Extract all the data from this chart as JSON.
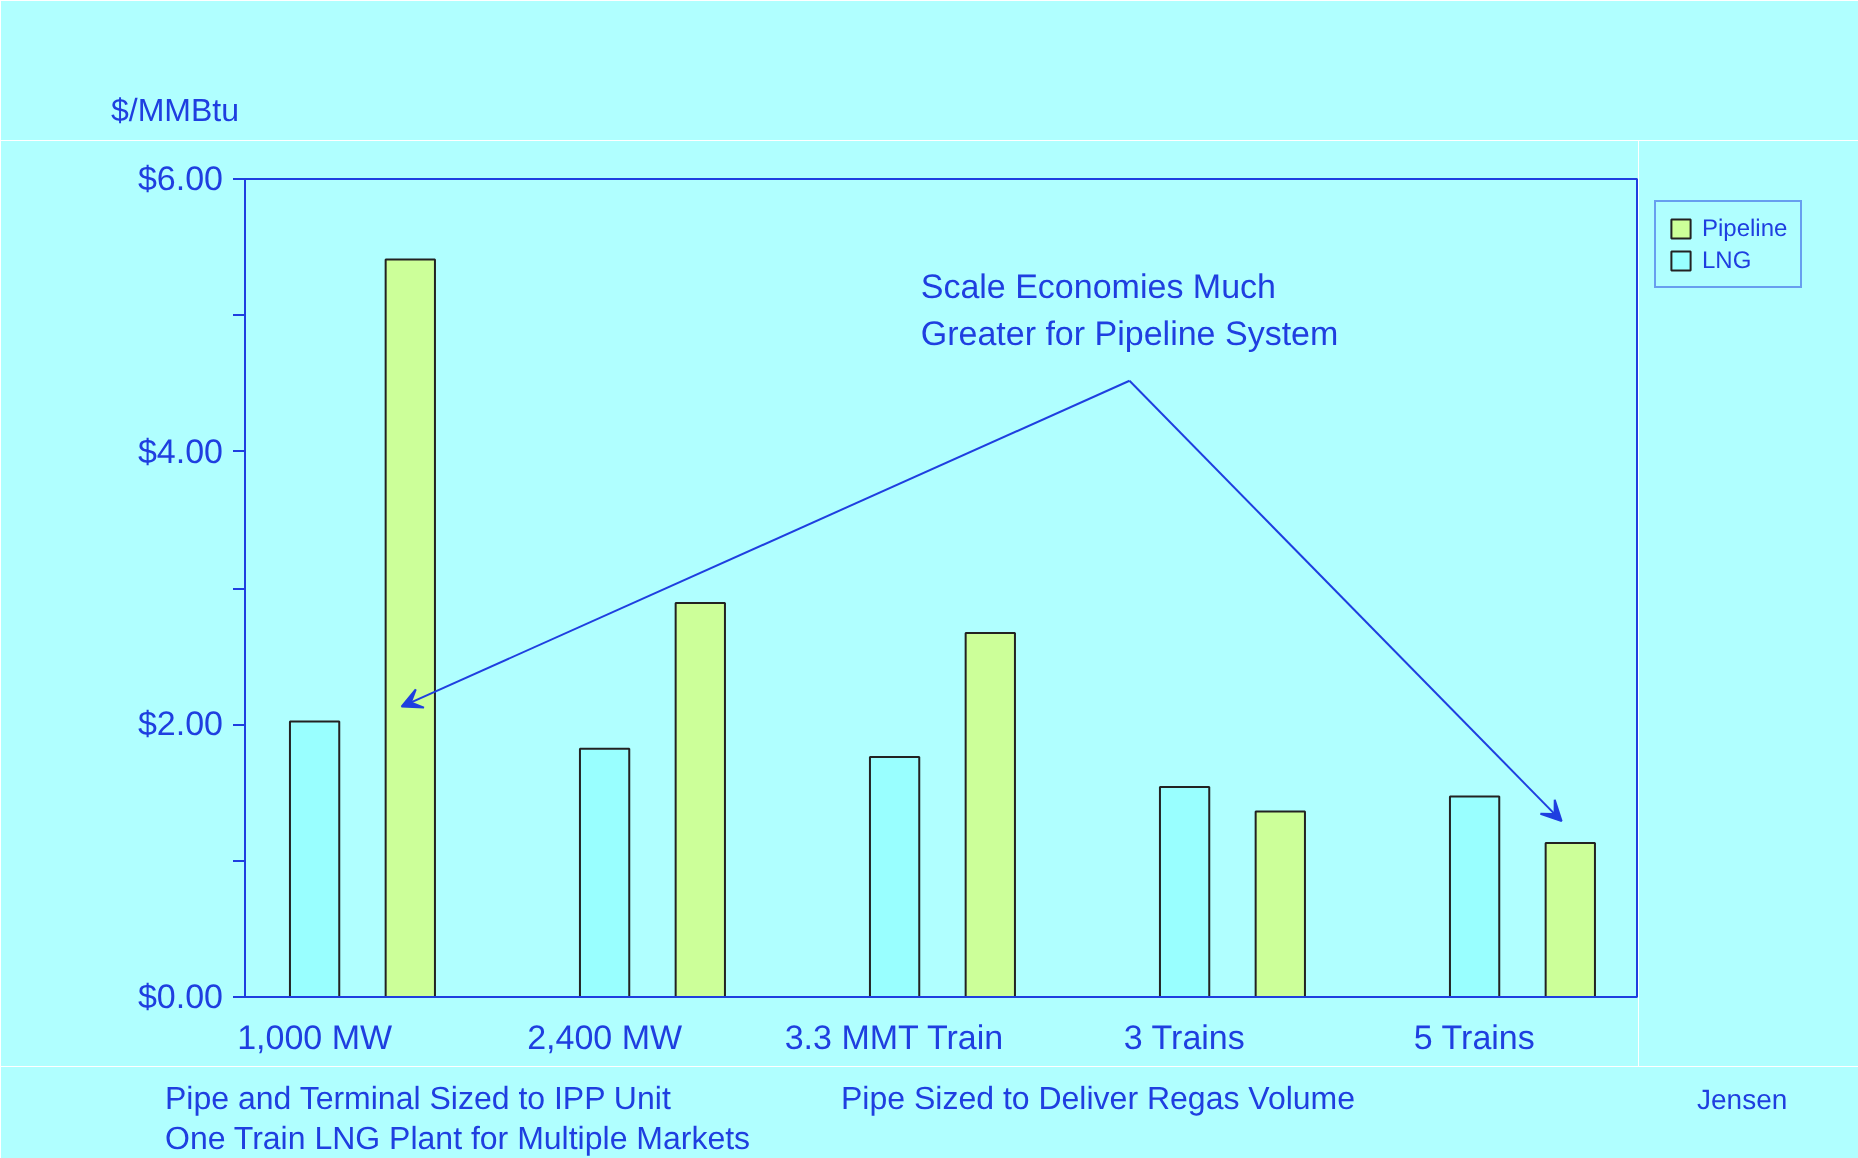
{
  "chart_data": {
    "type": "bar",
    "ylabel": "$/MMBtu",
    "categories": [
      "1,000 MW",
      "2,400 MW",
      "3.3 MMT Train",
      "3 Trains",
      "5 Trains"
    ],
    "series": [
      {
        "name": "LNG",
        "color": "#99ffff",
        "values": [
          2.02,
          1.82,
          1.76,
          1.54,
          1.47
        ]
      },
      {
        "name": "Pipeline",
        "color": "#ccff99",
        "values": [
          5.41,
          2.89,
          2.67,
          1.36,
          1.13
        ]
      }
    ],
    "ylim": [
      0,
      6
    ],
    "yticks": [
      {
        "value": 0,
        "label": "$0.00"
      },
      {
        "value": 1,
        "label": null
      },
      {
        "value": 2,
        "label": "$2.00"
      },
      {
        "value": 3,
        "label": null
      },
      {
        "value": 4,
        "label": "$4.00"
      },
      {
        "value": 5,
        "label": null
      },
      {
        "value": 6,
        "label": "$6.00"
      }
    ],
    "grid": false,
    "legend": "top right",
    "annotations": [
      "Scale Economies Much\nGreater for Pipeline System",
      "Pipe and Terminal Sized to IPP Unit",
      "One Train LNG Plant for Multiple Markets",
      "Pipe Sized to Deliver Regas Volume",
      "Jensen"
    ]
  }
}
